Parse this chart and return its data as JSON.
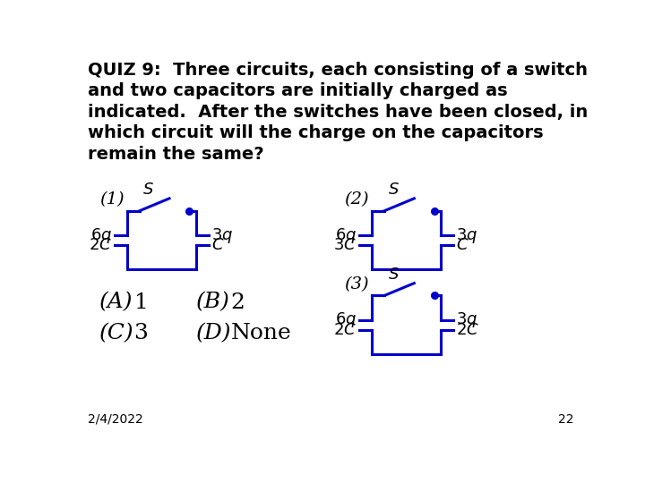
{
  "title_text": "QUIZ 9:  Three circuits, each consisting of a switch\nand two capacitors are initially charged as\nindicated.  After the switches have been closed, in\nwhich circuit will the charge on the capacitors\nremain the same?",
  "bg_color": "#ffffff",
  "circuit_color": "#0000cc",
  "font_color": "#000000",
  "date_text": "2/4/2022",
  "page_num": "22",
  "circuits": [
    {
      "label": "(1)",
      "left_q": "6q",
      "left_c": "2C",
      "right_q": "3q",
      "right_c": "C"
    },
    {
      "label": "(2)",
      "left_q": "6q",
      "left_c": "3C",
      "right_q": "3q",
      "right_c": "C"
    },
    {
      "label": "(3)",
      "left_q": "6q",
      "left_c": "2C",
      "right_q": "3q",
      "right_c": "2 C"
    }
  ]
}
